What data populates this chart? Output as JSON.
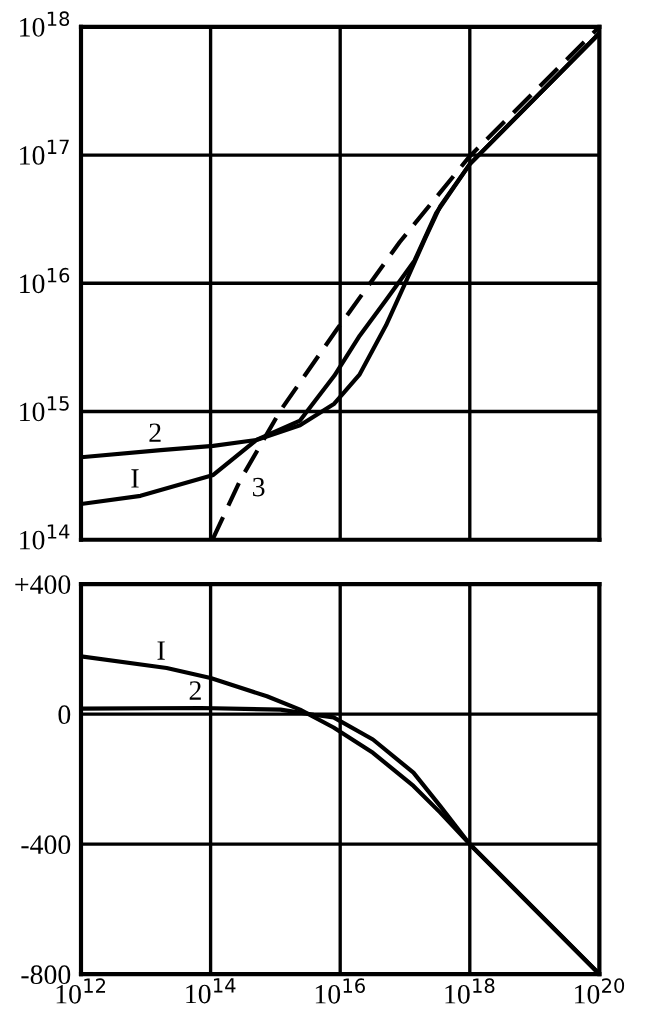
{
  "chart_data": [
    {
      "type": "line",
      "log": "xy",
      "xlim": [
        1000000000000.0,
        1e+20
      ],
      "ylim": [
        100000000000000.0,
        1e+18
      ],
      "tick_labels": "y",
      "grid": true,
      "legend": false,
      "xticks": [
        {
          "value": 1000000000000.0,
          "label": null
        },
        {
          "value": 100000000000000.0,
          "label": null
        },
        {
          "value": 1e+16,
          "label": null
        },
        {
          "value": 1e+18,
          "label": null
        },
        {
          "value": 1e+20,
          "label": null
        }
      ],
      "yticks": [
        {
          "value": 100000000000000.0,
          "label": "10$^{14}$"
        },
        {
          "value": 1000000000000000.0,
          "label": "10$^{15}$"
        },
        {
          "value": 1e+16,
          "label": "10$^{16}$"
        },
        {
          "value": 1e+17,
          "label": "10$^{17}$"
        },
        {
          "value": 1e+18,
          "label": "10$^{18}$"
        }
      ],
      "series": [
        {
          "name": "2",
          "color": "#000000",
          "line_style": "solid",
          "x": [
            1000000000000.0,
            17000000000000.0,
            110000000000000.0,
            510000000000000.0,
            2400000000000000.0,
            8100000000000000.0,
            2e+16,
            5.1e+16,
            1.05e+17,
            2.1e+17,
            3.5e+17,
            1e+18,
            1e+20
          ],
          "values": [
            440000000000000.0,
            500000000000000.0,
            540000000000000.0,
            600000000000000.0,
            780000000000000.0,
            1150000000000000.0,
            1950000000000000.0,
            4700000000000000.0,
            1.05e+16,
            2.3e+16,
            4e+16,
            8.5e+16,
            8.9e+17
          ]
        },
        {
          "name": "I",
          "color": "#000000",
          "line_style": "solid",
          "x": [
            1000000000000.0,
            8300000000000.0,
            110000000000000.0,
            510000000000000.0,
            2400000000000000.0,
            8100000000000000.0,
            2e+16,
            5.1e+16,
            1.4e+17,
            3e+17,
            1e+18,
            1e+20
          ],
          "values": [
            190000000000000.0,
            220000000000000.0,
            320000000000000.0,
            600000000000000.0,
            850000000000000.0,
            1900000000000000.0,
            3900000000000000.0,
            7400000000000000.0,
            1.5e+16,
            3.5e+16,
            8.5e+16,
            8.9e+17
          ]
        },
        {
          "name": "3",
          "color": "#000000",
          "line_style": "dashed",
          "x": [
            107000000000000.0,
            290000000000000.0,
            1200000000000000.0,
            8700000000000000.0,
            8.3e+16,
            1e+18,
            1e+20
          ],
          "values": [
            100000000000000.0,
            295000000000000.0,
            1020000000000000.0,
            4300000000000000.0,
            2.1e+16,
            9.8e+16,
            1e+18
          ]
        }
      ]
    },
    {
      "type": "line",
      "log": "x",
      "xlim": [
        1000000000000.0,
        1e+20
      ],
      "ylim": [
        -800,
        400
      ],
      "grid": true,
      "legend": false,
      "xticks": [
        {
          "value": 1000000000000.0,
          "label": "10$^{12}$"
        },
        {
          "value": 100000000000000.0,
          "label": "10$^{14}$"
        },
        {
          "value": 1e+16,
          "label": "10$^{16}$"
        },
        {
          "value": 1e+18,
          "label": "10$^{18}$"
        },
        {
          "value": 1e+20,
          "label": "10$^{20}$"
        }
      ],
      "yticks": [
        {
          "value": 400,
          "label": "+400"
        },
        0,
        -400,
        -800
      ],
      "series": [
        {
          "name": "I",
          "color": "#000000",
          "line_style": "solid",
          "x": [
            1000000000000.0,
            21000000000000.0,
            100000000000000.0,
            740000000000000.0,
            2400000000000000.0,
            7900000000000000.0,
            3.2e+16,
            1.35e+17,
            3.5e+17,
            1e+18,
            1e+20
          ],
          "values": [
            178,
            142,
            111,
            55,
            14,
            -41,
            -119,
            -221,
            -303,
            -400,
            -800
          ]
        },
        {
          "name": "2",
          "color": "#000000",
          "line_style": "solid",
          "x": [
            1000000000000.0,
            71000000000000.0,
            1200000000000000.0,
            3900000000000000.0,
            7900000000000000.0,
            3.2e+16,
            1.35e+17,
            3.5e+17,
            1e+18,
            1e+20
          ],
          "values": [
            17,
            19,
            14,
            -2,
            -10,
            -78,
            -180,
            -283,
            -400,
            -800
          ]
        }
      ]
    }
  ]
}
